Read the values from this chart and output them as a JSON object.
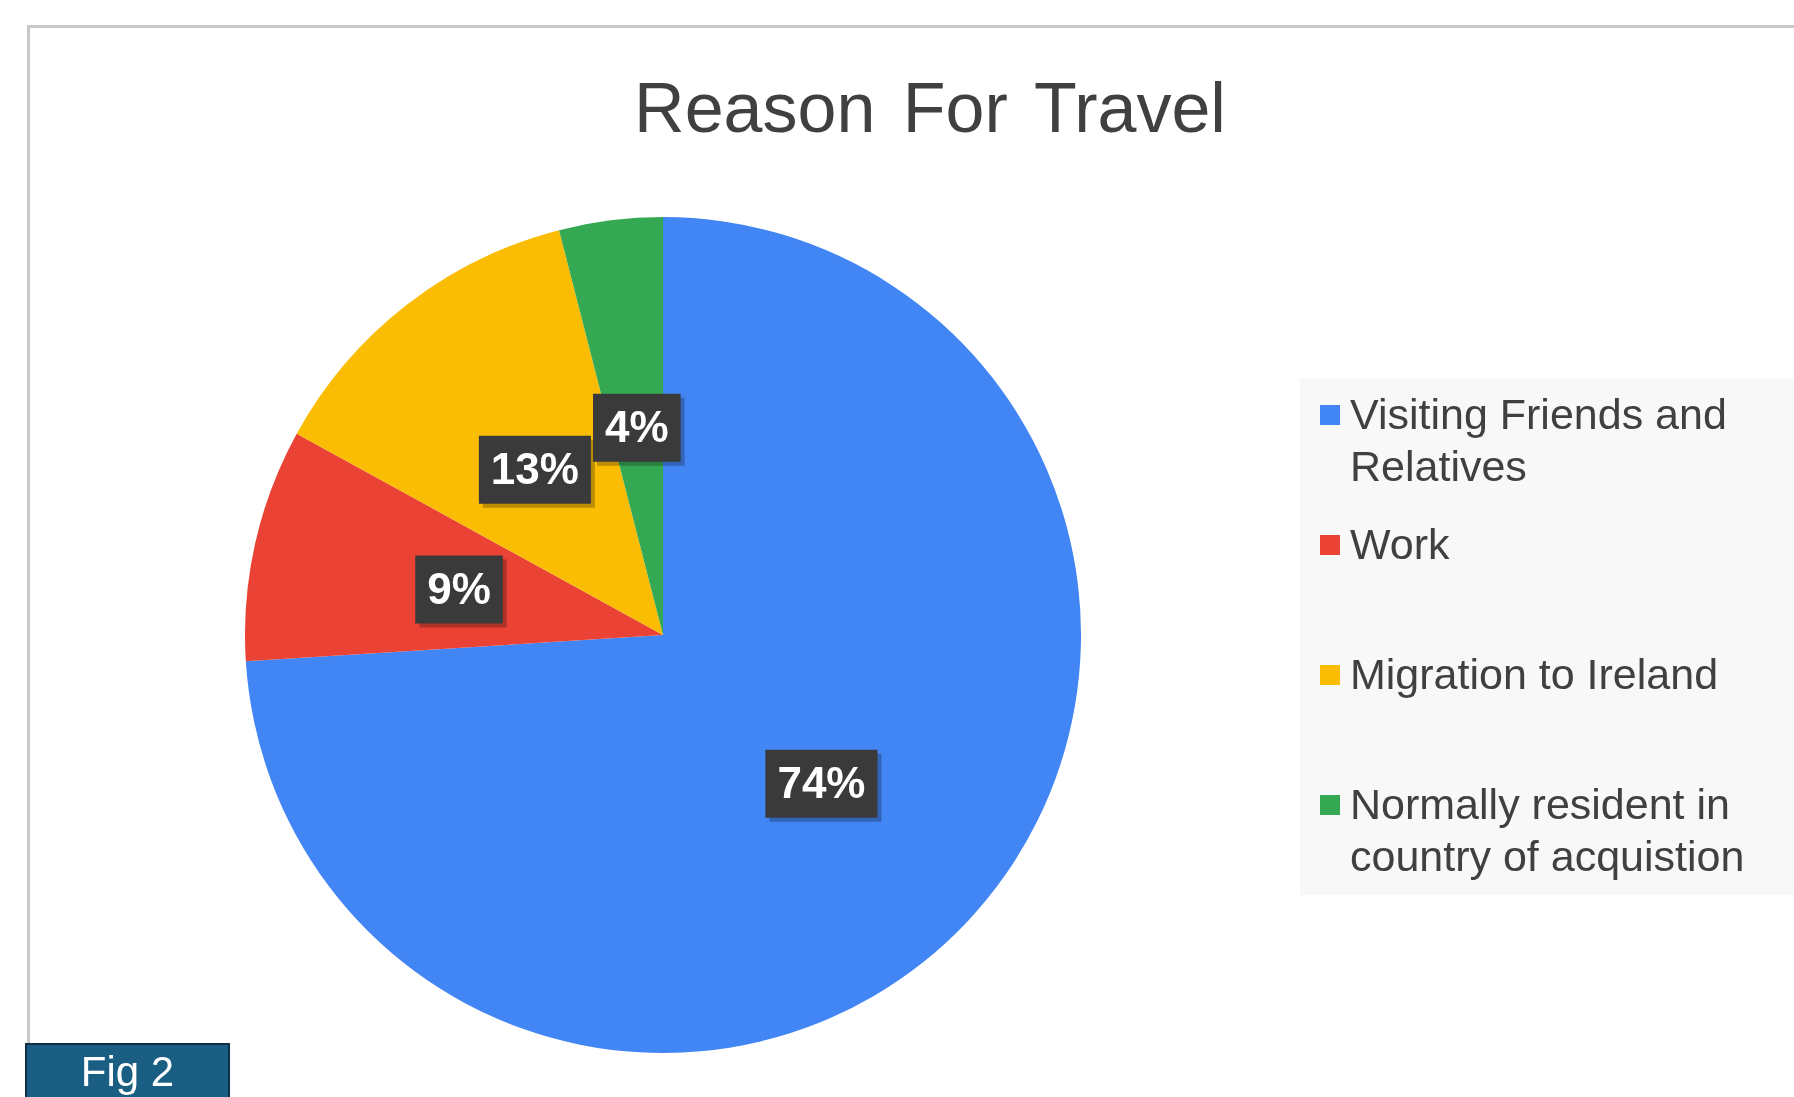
{
  "chart_data": {
    "type": "pie",
    "title": "Reason For Travel",
    "categories": [
      "Visiting Friends and Relatives",
      "Work",
      "Migration to Ireland",
      "Normally resident in country of acquistion"
    ],
    "values": [
      74,
      9,
      13,
      4
    ],
    "colors": [
      "#4285f4",
      "#ea4335",
      "#fbbc04",
      "#34a853"
    ],
    "value_labels": [
      "74%",
      "9%",
      "13%",
      "4%"
    ],
    "legend": "right",
    "annotations": [
      "Fig 2"
    ]
  }
}
